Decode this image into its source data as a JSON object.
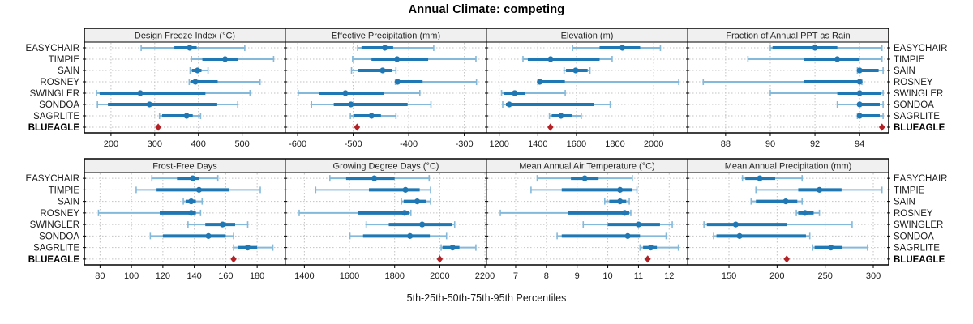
{
  "title": "Annual Climate: competing",
  "caption": "5th-25th-50th-75th-95th Percentiles",
  "stations": [
    "EASYCHAIR",
    "TIMPIE",
    "SAIN",
    "ROSNEY",
    "SWINGLER",
    "SONDOA",
    "SAGRLITE"
  ],
  "highlight_station": "BLUEAGLE",
  "colors": {
    "blue": "#1f77b4",
    "light_blue": "#85b9da",
    "red": "#b22126",
    "header_bg": "#f0f0f0",
    "grid": "#c2c2c2",
    "frame": "#000000"
  },
  "chart_data": [
    {
      "type": "percentile-dot-plot",
      "title": "Design Freeze Index (°C)",
      "ticks": [
        200,
        300,
        400,
        500
      ],
      "xlim": [
        139,
        599
      ],
      "percentiles": [
        [
          269,
          345,
          380,
          396,
          506
        ],
        [
          384,
          409,
          461,
          490,
          572
        ],
        [
          381,
          385,
          398,
          407,
          422
        ],
        [
          379,
          383,
          393,
          444,
          541
        ],
        [
          167,
          174,
          267,
          416,
          518
        ],
        [
          169,
          193,
          288,
          443,
          490
        ],
        [
          311,
          317,
          373,
          387,
          405
        ]
      ],
      "blueagle": 308
    },
    {
      "type": "percentile-dot-plot",
      "title": "Effective Precipitation (mm)",
      "ticks": [
        -600,
        -500,
        -400,
        -300
      ],
      "xlim": [
        -622,
        -260
      ],
      "percentiles": [
        [
          -492,
          -485,
          -443,
          -428,
          -355
        ],
        [
          -501,
          -467,
          -421,
          -365,
          -279
        ],
        [
          -503,
          -492,
          -447,
          -430,
          -423
        ],
        [
          -424,
          -422,
          -420,
          -375,
          -278
        ],
        [
          -599,
          -562,
          -514,
          -445,
          -380
        ],
        [
          -575,
          -535,
          -504,
          -402,
          -360
        ],
        [
          -505,
          -499,
          -467,
          -450,
          -423
        ]
      ],
      "blueagle": -493
    },
    {
      "type": "percentile-dot-plot",
      "title": "Elevation (m)",
      "ticks": [
        1200,
        1400,
        1600,
        1800,
        2000
      ],
      "xlim": [
        1134,
        2176
      ],
      "percentiles": [
        [
          1580,
          1720,
          1838,
          1930,
          2035
        ],
        [
          1323,
          1348,
          1466,
          1720,
          1785
        ],
        [
          1536,
          1546,
          1596,
          1658,
          1670
        ],
        [
          1400,
          1404,
          1410,
          1540,
          2130
        ],
        [
          1212,
          1222,
          1280,
          1335,
          1542
        ],
        [
          1218,
          1235,
          1252,
          1690,
          1775
        ],
        [
          1460,
          1472,
          1520,
          1575,
          1625
        ]
      ],
      "blueagle": 1465
    },
    {
      "type": "percentile-dot-plot",
      "title": "Fraction of Annual PPT as Rain",
      "ticks": [
        88,
        90,
        92,
        94
      ],
      "xlim": [
        86.3,
        95.3
      ],
      "percentiles": [
        [
          90.0,
          90.1,
          92.0,
          93.0,
          95.0
        ],
        [
          89.0,
          91.5,
          93.0,
          94.0,
          95.0
        ],
        [
          93.9,
          93.95,
          94.0,
          94.85,
          95.05
        ],
        [
          87.0,
          91.5,
          94.0,
          94.05,
          94.1
        ],
        [
          90.0,
          93.0,
          94.0,
          94.95,
          95.05
        ],
        [
          93.0,
          93.9,
          94.0,
          94.9,
          95.05
        ],
        [
          93.9,
          93.95,
          94.0,
          94.9,
          95.05
        ]
      ],
      "blueagle": 95.0
    },
    {
      "type": "percentile-dot-plot",
      "title": "Frost-Free Days",
      "ticks": [
        80,
        100,
        120,
        140,
        160,
        180
      ],
      "xlim": [
        70,
        198
      ],
      "percentiles": [
        [
          113,
          129,
          139,
          143,
          155
        ],
        [
          103,
          116,
          143,
          162,
          182
        ],
        [
          133,
          135,
          138,
          141,
          145
        ],
        [
          79,
          118,
          138,
          141,
          144
        ],
        [
          136,
          147,
          158,
          166,
          174
        ],
        [
          112,
          120,
          149,
          160,
          165
        ],
        [
          165,
          168,
          174,
          180,
          190
        ]
      ],
      "blueagle": 165
    },
    {
      "type": "percentile-dot-plot",
      "title": "Growing Degree Days (°C)",
      "ticks": [
        1400,
        1600,
        1800,
        2000,
        2200
      ],
      "xlim": [
        1316,
        2207
      ],
      "percentiles": [
        [
          1513,
          1585,
          1710,
          1800,
          1953
        ],
        [
          1450,
          1686,
          1848,
          1911,
          1959
        ],
        [
          1830,
          1840,
          1900,
          1938,
          1959
        ],
        [
          1377,
          1638,
          1844,
          1863,
          1872
        ],
        [
          1674,
          1774,
          1922,
          2054,
          2066
        ],
        [
          1602,
          1660,
          1868,
          1956,
          2030
        ],
        [
          2006,
          2012,
          2057,
          2087,
          2160
        ]
      ],
      "blueagle": 2000
    },
    {
      "type": "percentile-dot-plot",
      "title": "Mean Annual Air Temperature (°C)",
      "ticks": [
        7,
        8,
        9,
        10,
        11,
        12
      ],
      "xlim": [
        6.05,
        12.6
      ],
      "percentiles": [
        [
          7.7,
          8.8,
          9.25,
          9.7,
          10.8
        ],
        [
          7.5,
          8.5,
          10.4,
          10.8,
          10.95
        ],
        [
          9.9,
          10.05,
          10.4,
          10.6,
          10.7
        ],
        [
          6.5,
          8.7,
          10.55,
          10.7,
          10.75
        ],
        [
          9.2,
          10.0,
          11.0,
          11.7,
          12.1
        ],
        [
          8.35,
          8.5,
          10.65,
          11.05,
          11.9
        ],
        [
          11.05,
          11.15,
          11.4,
          11.6,
          12.3
        ]
      ],
      "blueagle": 11.3
    },
    {
      "type": "percentile-dot-plot",
      "title": "Mean Annual Precipitation (mm)",
      "ticks": [
        150,
        200,
        250,
        300
      ],
      "xlim": [
        107,
        316
      ],
      "percentiles": [
        [
          164,
          167,
          182,
          198,
          226
        ],
        [
          178,
          222,
          244,
          267,
          309
        ],
        [
          173,
          178,
          209,
          221,
          226
        ],
        [
          220,
          222,
          229,
          238,
          244
        ],
        [
          124,
          127,
          157,
          210,
          278
        ],
        [
          134,
          137,
          161,
          230,
          234
        ],
        [
          237,
          239,
          256,
          268,
          294
        ]
      ],
      "blueagle": 210
    }
  ]
}
